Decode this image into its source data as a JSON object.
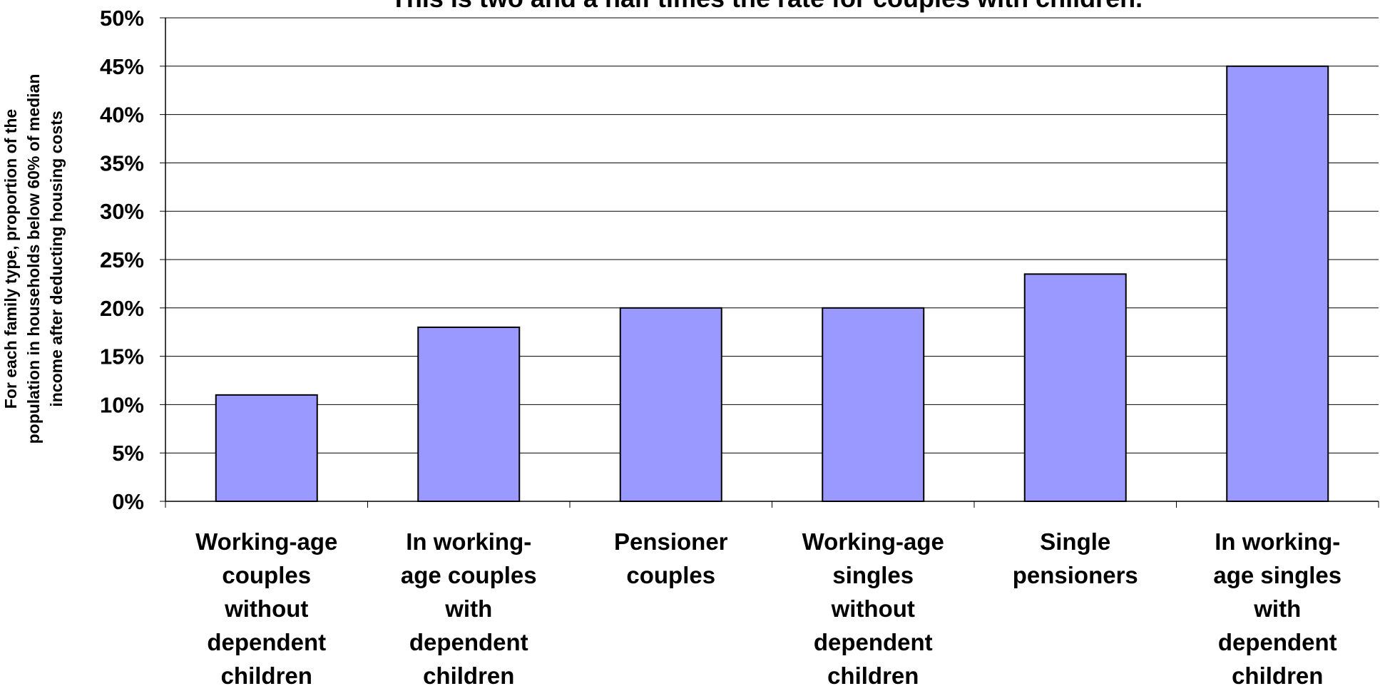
{
  "chart_data": {
    "type": "bar",
    "title": "This is two and a half times the rate for couples with children.",
    "ylabel": "For each family type, proportion of the population in households below 60% of median income after deducting housing costs",
    "ylabel_lines": [
      "For each family type, proportion of the",
      "population in households below 60% of median",
      "income after deducting housing costs"
    ],
    "xlabel": "",
    "ylim": [
      0,
      50
    ],
    "y_ticks": [
      "0%",
      "5%",
      "10%",
      "15%",
      "20%",
      "25%",
      "30%",
      "35%",
      "40%",
      "45%",
      "50%"
    ],
    "categories": [
      [
        "Working-age",
        "couples",
        "without",
        "dependent",
        "children"
      ],
      [
        "In working-",
        "age couples",
        "with",
        "dependent",
        "children"
      ],
      [
        "Pensioner",
        "couples"
      ],
      [
        "Working-age",
        "singles",
        "without",
        "dependent",
        "children"
      ],
      [
        "Single",
        "pensioners"
      ],
      [
        "In working-",
        "age singles",
        "with",
        "dependent",
        "children"
      ]
    ],
    "values": [
      11,
      18,
      20,
      20,
      23.5,
      45
    ],
    "unit": "%",
    "grid": true,
    "legend": "none",
    "bar_color": "#9999ff"
  }
}
